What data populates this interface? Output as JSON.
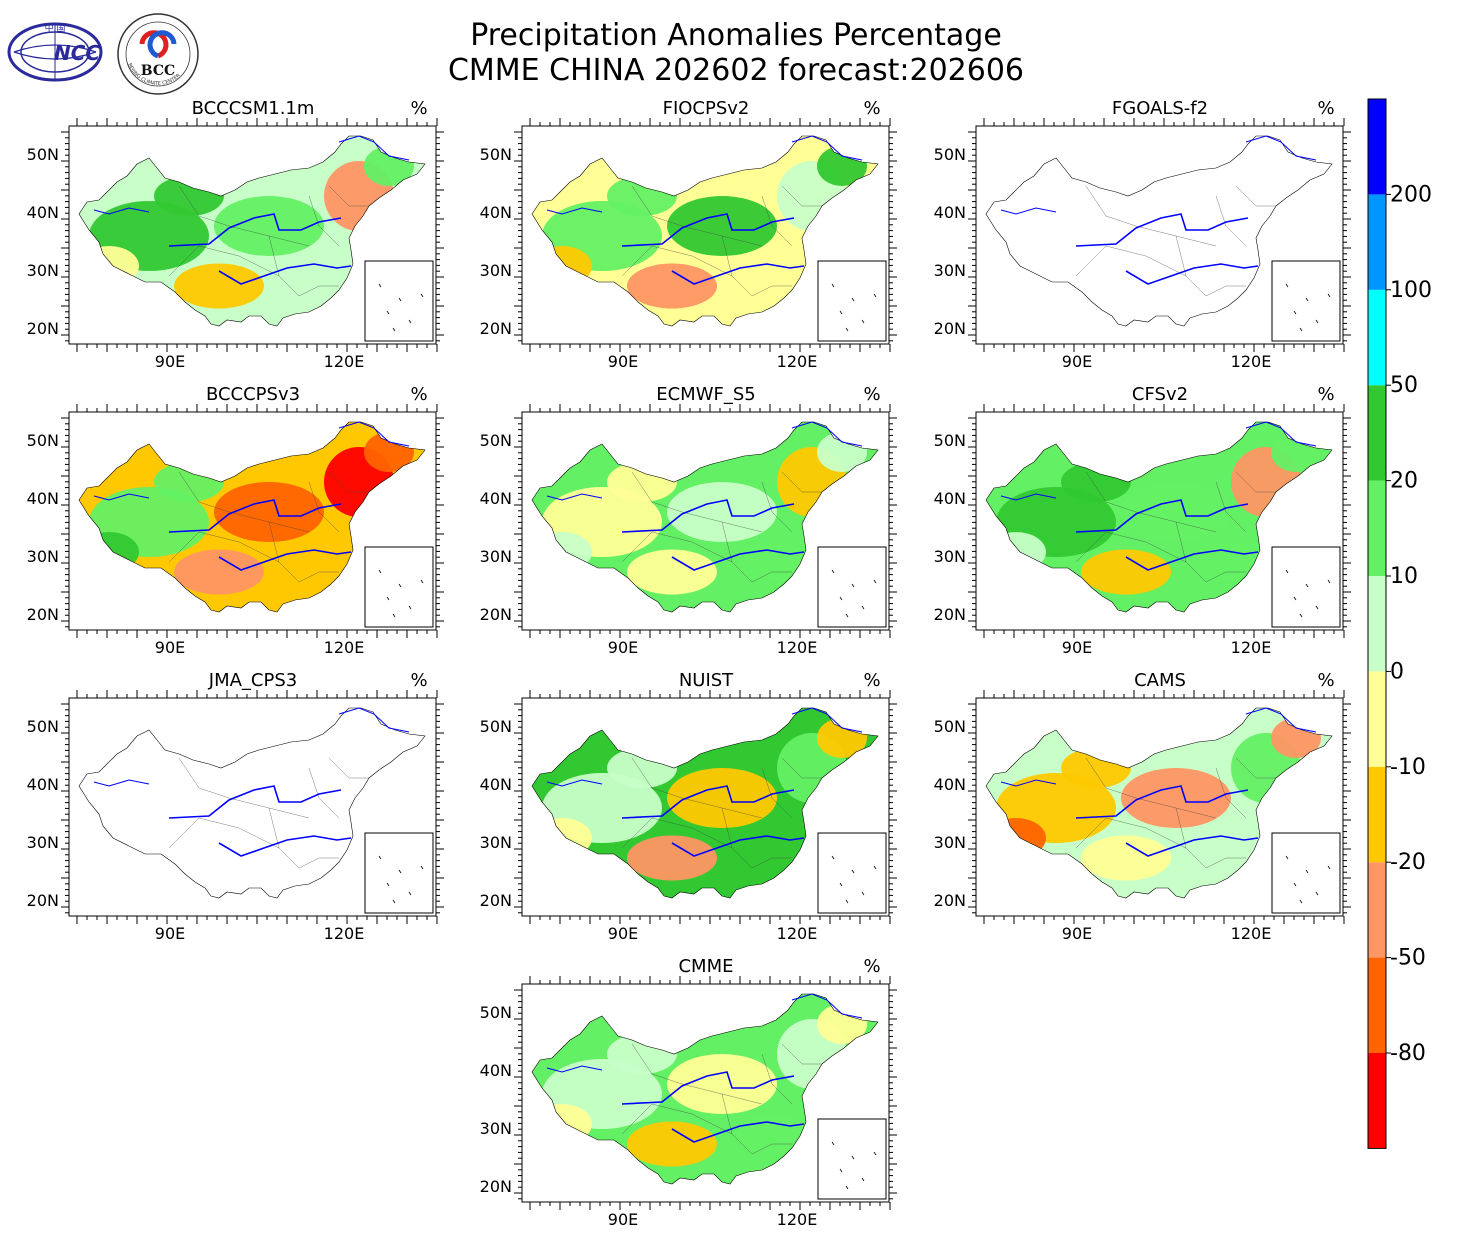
{
  "title": {
    "line1": "Precipitation Anomalies Percentage",
    "line2": "CMME CHINA 202602 forecast:202606"
  },
  "logos": [
    {
      "name": "ncc-logo",
      "text": "NCC",
      "top_text": "中 国"
    },
    {
      "name": "bcc-logo",
      "text": "BCC",
      "ring_text": "BEIJING CLIMATE CENTER"
    }
  ],
  "unit": "%",
  "axes": {
    "lat_labels": [
      "50N",
      "40N",
      "30N",
      "20N"
    ],
    "lon_labels": [
      "90E",
      "120E"
    ]
  },
  "panels": [
    {
      "model": "BCCCSM1.1m",
      "has_data": true,
      "pal": [
        "#32c832",
        "#64f064",
        "#ff9664",
        "#ffc800",
        "#ffff96",
        "#c8ffc8"
      ]
    },
    {
      "model": "FIOCPSv2",
      "has_data": true,
      "pal": [
        "#64f064",
        "#32c832",
        "#c8ffc8",
        "#ff9664",
        "#ffc800",
        "#ffff96"
      ]
    },
    {
      "model": "FGOALS-f2",
      "has_data": false,
      "pal": []
    },
    {
      "model": "BCCCPSv3",
      "has_data": true,
      "pal": [
        "#64f064",
        "#ff6400",
        "#ff0000",
        "#ff9664",
        "#32c832",
        "#ffc800"
      ]
    },
    {
      "model": "ECMWF_S5",
      "has_data": true,
      "pal": [
        "#ffff96",
        "#c8ffc8",
        "#ffc800",
        "#ffff96",
        "#c8ffc8",
        "#64f064"
      ]
    },
    {
      "model": "CFSv2",
      "has_data": true,
      "pal": [
        "#32c832",
        "#64f064",
        "#ff9664",
        "#ffc800",
        "#c8ffc8",
        "#64f064"
      ]
    },
    {
      "model": "JMA_CPS3",
      "has_data": false,
      "pal": []
    },
    {
      "model": "NUIST",
      "has_data": true,
      "pal": [
        "#c8ffc8",
        "#ffc800",
        "#64f064",
        "#ff9664",
        "#ffff96",
        "#32c832"
      ]
    },
    {
      "model": "CAMS",
      "has_data": true,
      "pal": [
        "#ffc800",
        "#ff9664",
        "#64f064",
        "#ffff96",
        "#ff6400",
        "#c8ffc8"
      ]
    },
    {
      "model": "CMME",
      "has_data": true,
      "pal": [
        "#c8ffc8",
        "#ffff96",
        "#c8ffc8",
        "#ffc800",
        "#ffff96",
        "#64f064"
      ]
    }
  ],
  "colorbar": {
    "colors": [
      "#ff0000",
      "#ff6400",
      "#ff9664",
      "#ffc800",
      "#ffff96",
      "#c8ffc8",
      "#64f064",
      "#32c832",
      "#00ffff",
      "#0096ff",
      "#0000ff"
    ],
    "labels": [
      "-80",
      "-50",
      "-20",
      "-10",
      "0",
      "10",
      "20",
      "50",
      "100",
      "200"
    ]
  }
}
